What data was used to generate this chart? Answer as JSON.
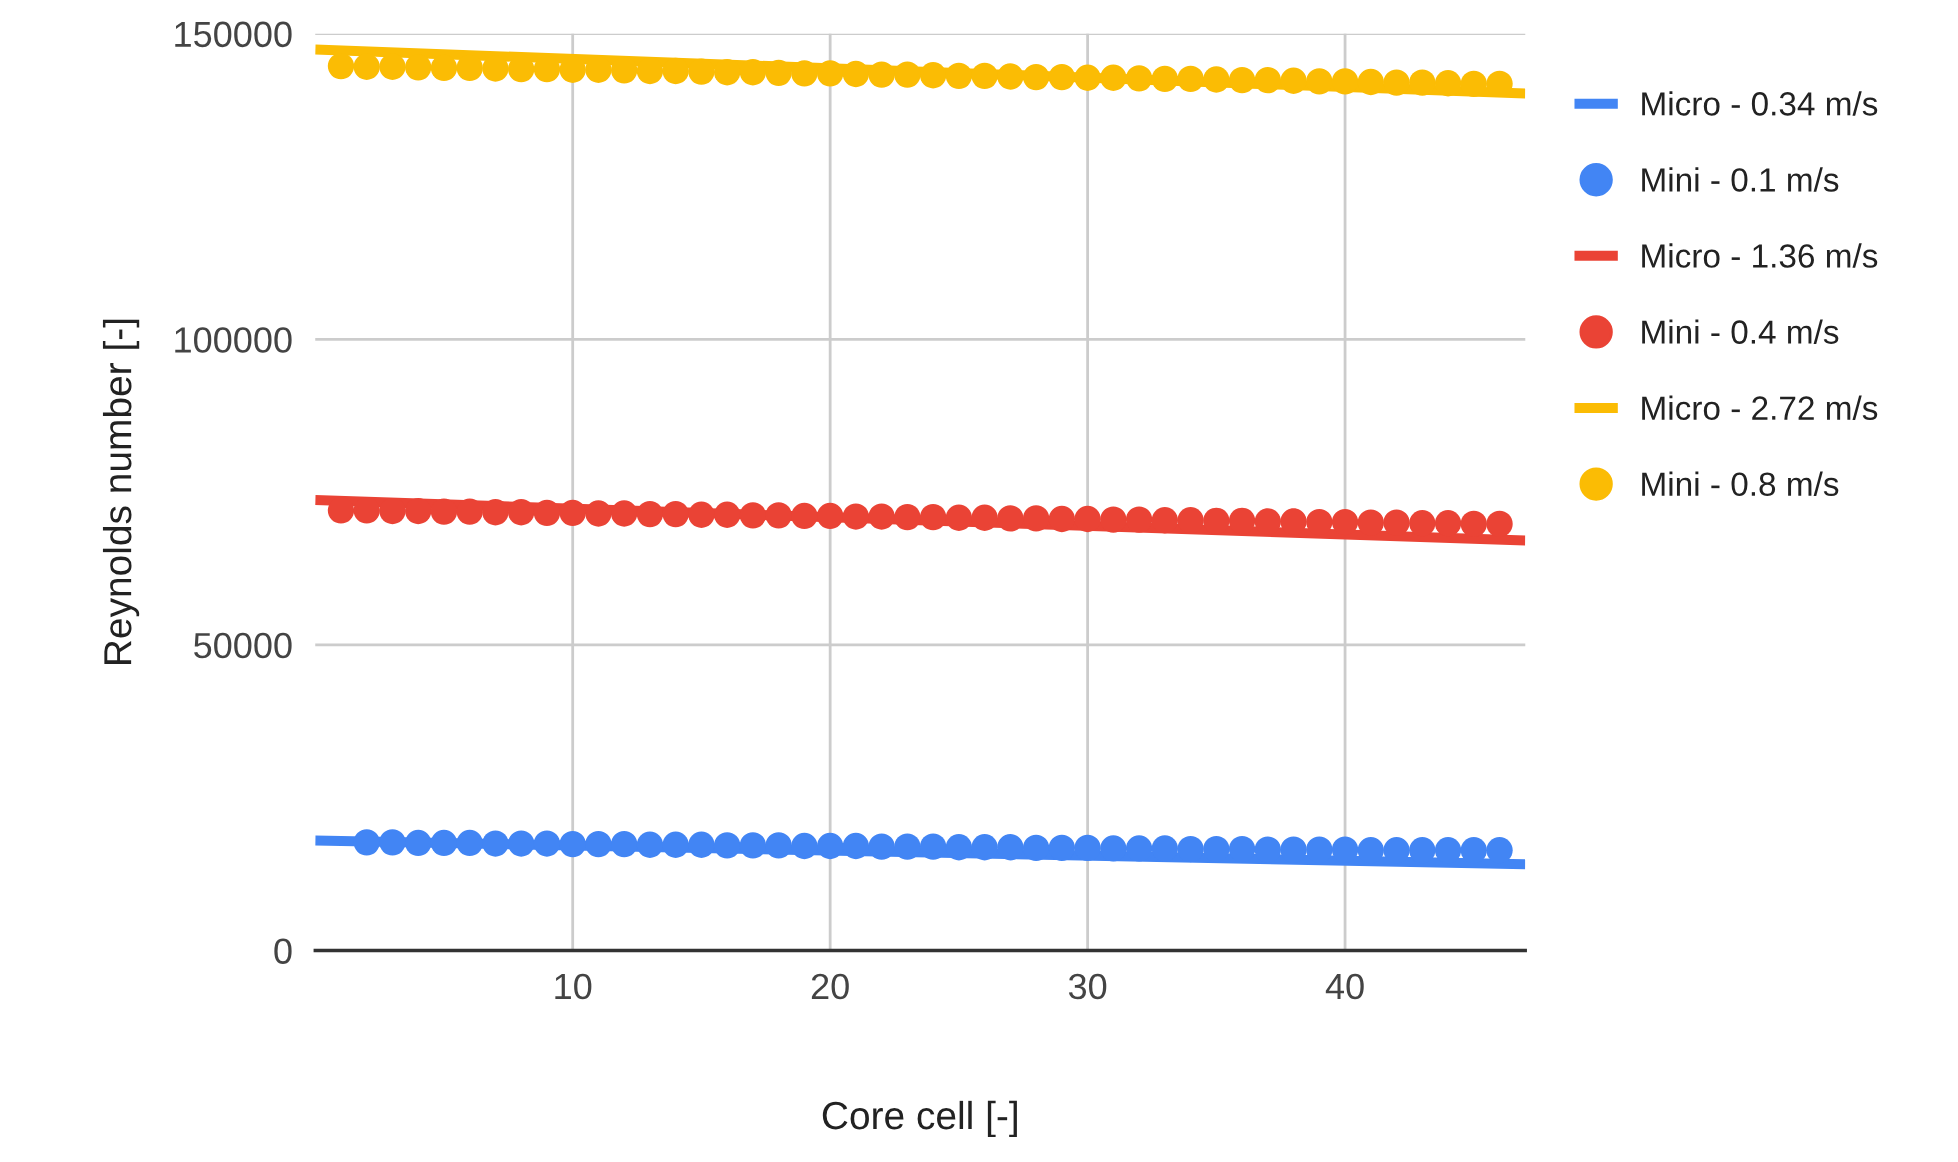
{
  "chart_data": {
    "type": "line",
    "xlabel": "Core cell [-]",
    "ylabel": "Reynolds number [-]",
    "xlim": [
      0,
      47
    ],
    "xticks": [
      10,
      20,
      30,
      40
    ],
    "ylim": [
      0,
      150000
    ],
    "yticks": [
      0,
      50000,
      100000,
      150000
    ],
    "grid": true,
    "legend": "right",
    "line_style": "solid",
    "series": [
      {
        "name": "Micro - 0.34 m/s",
        "color": "#4285f4",
        "x": [
          0,
          47
        ],
        "values": [
          18000,
          14100
        ]
      },
      {
        "name": "Mini - 0.1 m/s",
        "type": "scatter",
        "marker": "circle",
        "color": "#4285f4",
        "x": [
          2,
          3,
          4,
          5,
          6,
          7,
          8,
          9,
          10,
          11,
          12,
          13,
          14,
          15,
          16,
          17,
          18,
          19,
          20,
          21,
          22,
          23,
          24,
          25,
          26,
          27,
          28,
          29,
          30,
          31,
          32,
          33,
          34,
          35,
          36,
          37,
          38,
          39,
          40,
          41,
          42,
          43,
          44,
          45,
          46
        ],
        "values": [
          17700,
          17700,
          17600,
          17600,
          17600,
          17500,
          17500,
          17500,
          17400,
          17400,
          17400,
          17300,
          17300,
          17300,
          17200,
          17200,
          17200,
          17100,
          17100,
          17100,
          17000,
          17000,
          17000,
          16900,
          16900,
          16900,
          16800,
          16800,
          16800,
          16700,
          16700,
          16700,
          16600,
          16600,
          16600,
          16500,
          16500,
          16500,
          16500,
          16400,
          16400,
          16400,
          16400,
          16400,
          16400
        ]
      },
      {
        "name": "Micro - 1.36 m/s",
        "color": "#ea4335",
        "x": [
          0,
          47
        ],
        "values": [
          73700,
          67100
        ]
      },
      {
        "name": "Mini - 0.4 m/s",
        "type": "scatter",
        "marker": "circle",
        "color": "#ea4335",
        "x": [
          1,
          2,
          3,
          4,
          5,
          6,
          7,
          8,
          9,
          10,
          11,
          12,
          13,
          14,
          15,
          16,
          17,
          18,
          19,
          20,
          21,
          22,
          23,
          24,
          25,
          26,
          27,
          28,
          29,
          30,
          31,
          32,
          33,
          34,
          35,
          36,
          37,
          38,
          39,
          40,
          41,
          42,
          43,
          44,
          45,
          46
        ],
        "values": [
          72000,
          72000,
          71900,
          71900,
          71800,
          71800,
          71700,
          71700,
          71600,
          71600,
          71500,
          71500,
          71400,
          71400,
          71300,
          71300,
          71200,
          71200,
          71100,
          71100,
          71000,
          71000,
          70900,
          70900,
          70800,
          70800,
          70700,
          70700,
          70600,
          70600,
          70500,
          70500,
          70400,
          70400,
          70300,
          70300,
          70200,
          70200,
          70100,
          70100,
          70000,
          70000,
          69900,
          69900,
          69800,
          69800
        ]
      },
      {
        "name": "Micro - 2.72 m/s",
        "color": "#fbbc04",
        "x": [
          0,
          47
        ],
        "values": [
          147400,
          140200
        ]
      },
      {
        "name": "Mini - 0.8 m/s",
        "type": "scatter",
        "marker": "circle",
        "color": "#fbbc04",
        "x": [
          1,
          2,
          3,
          4,
          5,
          6,
          7,
          8,
          9,
          10,
          11,
          12,
          13,
          14,
          15,
          16,
          17,
          18,
          19,
          20,
          21,
          22,
          23,
          24,
          25,
          26,
          27,
          28,
          29,
          30,
          31,
          32,
          33,
          34,
          35,
          36,
          37,
          38,
          39,
          40,
          41,
          42,
          43,
          44,
          45,
          46
        ],
        "values": [
          144700,
          144600,
          144600,
          144500,
          144400,
          144400,
          144300,
          144200,
          144200,
          144100,
          144100,
          144000,
          143900,
          143900,
          143800,
          143700,
          143700,
          143600,
          143500,
          143500,
          143400,
          143300,
          143300,
          143200,
          143100,
          143100,
          143000,
          142900,
          142900,
          142800,
          142800,
          142700,
          142600,
          142600,
          142500,
          142400,
          142400,
          142300,
          142200,
          142200,
          142100,
          142000,
          142000,
          141900,
          141800,
          141800
        ]
      }
    ]
  }
}
